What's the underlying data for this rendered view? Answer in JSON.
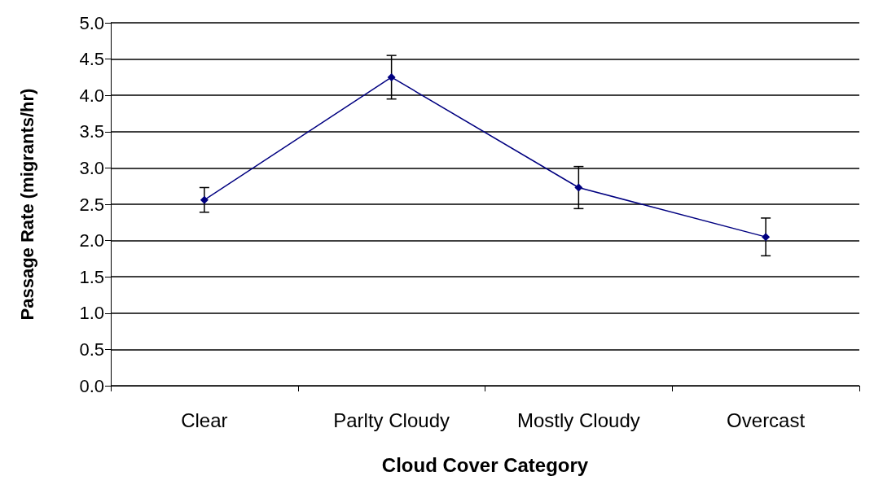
{
  "chart_data": {
    "type": "line",
    "xlabel": "Cloud Cover Category",
    "ylabel": "Passage Rate (migrants/hr)",
    "categories": [
      "Clear",
      "Parlty Cloudy",
      "Mostly Cloudy",
      "Overcast"
    ],
    "series": [
      {
        "color": "#000080",
        "values": [
          2.56,
          4.25,
          2.73,
          2.05
        ],
        "errors": [
          0.17,
          0.3,
          0.29,
          0.26
        ]
      }
    ],
    "ylim": [
      0,
      5
    ],
    "yticks": [
      {
        "value": 0,
        "label": "0.0"
      },
      {
        "value": 0.5,
        "label": "0.5"
      },
      {
        "value": 1,
        "label": "1.0"
      },
      {
        "value": 1.5,
        "label": "1.5"
      },
      {
        "value": 2,
        "label": "2.0"
      },
      {
        "value": 2.5,
        "label": "2.5"
      },
      {
        "value": 3,
        "label": "3.0"
      },
      {
        "value": 3.5,
        "label": "3.5"
      },
      {
        "value": 4,
        "label": "4.0"
      },
      {
        "value": 4.5,
        "label": "4.5"
      },
      {
        "value": 5,
        "label": "5.0"
      }
    ],
    "grid": "y",
    "marker": "diamond",
    "line_style": "solid"
  }
}
